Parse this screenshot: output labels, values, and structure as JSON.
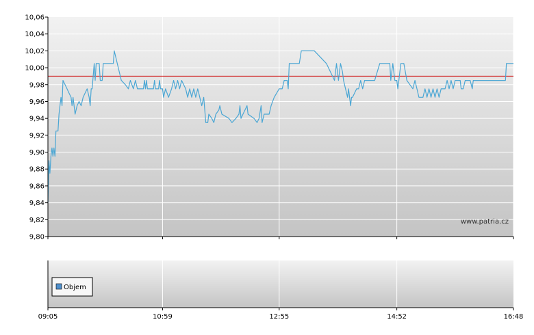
{
  "chart_data": [
    {
      "type": "line",
      "title": "",
      "xlabel": "",
      "ylabel": "",
      "ylim": [
        9.8,
        10.06
      ],
      "y_ticks": [
        "10,06",
        "10,04",
        "10,02",
        "10,00",
        "9,98",
        "9,96",
        "9,94",
        "9,92",
        "9,90",
        "9,88",
        "9,86",
        "9,84",
        "9,82",
        "9,80"
      ],
      "x_ticks": [
        "09:05",
        "10:59",
        "12:55",
        "14:52",
        "16:48"
      ],
      "xlim": [
        "09:05",
        "16:48"
      ],
      "reference_line": {
        "value": 9.99,
        "color": "#cc0000"
      },
      "grid": true,
      "series": [
        {
          "color": "#4aa6d4",
          "points": [
            [
              "09:05",
              9.84
            ],
            [
              "09:06",
              9.89
            ],
            [
              "09:07",
              9.875
            ],
            [
              "09:08",
              9.895
            ],
            [
              "09:09",
              9.905
            ],
            [
              "09:10",
              9.895
            ],
            [
              "09:11",
              9.905
            ],
            [
              "09:12",
              9.895
            ],
            [
              "09:13",
              9.925
            ],
            [
              "09:15",
              9.925
            ],
            [
              "09:16",
              9.945
            ],
            [
              "09:17",
              9.955
            ],
            [
              "09:18",
              9.965
            ],
            [
              "09:19",
              9.955
            ],
            [
              "09:20",
              9.985
            ],
            [
              "09:22",
              9.98
            ],
            [
              "09:24",
              9.975
            ],
            [
              "09:26",
              9.97
            ],
            [
              "09:28",
              9.965
            ],
            [
              "09:29",
              9.955
            ],
            [
              "09:30",
              9.965
            ],
            [
              "09:32",
              9.945
            ],
            [
              "09:34",
              9.955
            ],
            [
              "09:36",
              9.96
            ],
            [
              "09:38",
              9.955
            ],
            [
              "09:40",
              9.965
            ],
            [
              "09:42",
              9.97
            ],
            [
              "09:44",
              9.975
            ],
            [
              "09:46",
              9.965
            ],
            [
              "09:47",
              9.955
            ],
            [
              "09:48",
              9.975
            ],
            [
              "09:49",
              9.975
            ],
            [
              "09:51",
              10.005
            ],
            [
              "09:52",
              9.985
            ],
            [
              "09:53",
              10.005
            ],
            [
              "09:56",
              10.005
            ],
            [
              "09:57",
              9.985
            ],
            [
              "09:59",
              9.985
            ],
            [
              "10:00",
              10.005
            ],
            [
              "10:10",
              10.005
            ],
            [
              "10:11",
              10.02
            ],
            [
              "10:12",
              10.015
            ],
            [
              "10:14",
              10.005
            ],
            [
              "10:18",
              9.985
            ],
            [
              "10:22",
              9.98
            ],
            [
              "10:25",
              9.975
            ],
            [
              "10:27",
              9.985
            ],
            [
              "10:30",
              9.975
            ],
            [
              "10:32",
              9.985
            ],
            [
              "10:34",
              9.975
            ],
            [
              "10:40",
              9.975
            ],
            [
              "10:41",
              9.985
            ],
            [
              "10:42",
              9.975
            ],
            [
              "10:43",
              9.985
            ],
            [
              "10:44",
              9.975
            ],
            [
              "10:50",
              9.975
            ],
            [
              "10:51",
              9.985
            ],
            [
              "10:52",
              9.975
            ],
            [
              "10:55",
              9.975
            ],
            [
              "10:56",
              9.985
            ],
            [
              "10:57",
              9.975
            ],
            [
              "10:59",
              9.975
            ],
            [
              "11:00",
              9.965
            ],
            [
              "11:02",
              9.975
            ],
            [
              "11:05",
              9.965
            ],
            [
              "11:08",
              9.975
            ],
            [
              "11:10",
              9.985
            ],
            [
              "11:12",
              9.975
            ],
            [
              "11:14",
              9.985
            ],
            [
              "11:16",
              9.975
            ],
            [
              "11:18",
              9.985
            ],
            [
              "11:22",
              9.975
            ],
            [
              "11:24",
              9.965
            ],
            [
              "11:26",
              9.975
            ],
            [
              "11:28",
              9.965
            ],
            [
              "11:30",
              9.975
            ],
            [
              "11:32",
              9.965
            ],
            [
              "11:34",
              9.975
            ],
            [
              "11:36",
              9.965
            ],
            [
              "11:38",
              9.955
            ],
            [
              "11:40",
              9.965
            ],
            [
              "11:42",
              9.935
            ],
            [
              "11:44",
              9.935
            ],
            [
              "11:45",
              9.945
            ],
            [
              "11:48",
              9.94
            ],
            [
              "11:50",
              9.935
            ],
            [
              "11:52",
              9.945
            ],
            [
              "11:55",
              9.95
            ],
            [
              "11:56",
              9.955
            ],
            [
              "11:58",
              9.945
            ],
            [
              "12:05",
              9.94
            ],
            [
              "12:08",
              9.935
            ],
            [
              "12:12",
              9.94
            ],
            [
              "12:15",
              9.945
            ],
            [
              "12:16",
              9.955
            ],
            [
              "12:17",
              9.94
            ],
            [
              "12:19",
              9.945
            ],
            [
              "12:21",
              9.95
            ],
            [
              "12:23",
              9.955
            ],
            [
              "12:24",
              9.945
            ],
            [
              "12:30",
              9.94
            ],
            [
              "12:33",
              9.935
            ],
            [
              "12:35",
              9.94
            ],
            [
              "12:37",
              9.955
            ],
            [
              "12:38",
              9.935
            ],
            [
              "12:40",
              9.945
            ],
            [
              "12:45",
              9.945
            ],
            [
              "12:47",
              9.955
            ],
            [
              "12:50",
              9.965
            ],
            [
              "12:55",
              9.975
            ],
            [
              "12:58",
              9.975
            ],
            [
              "13:00",
              9.985
            ],
            [
              "13:03",
              9.985
            ],
            [
              "13:04",
              9.975
            ],
            [
              "13:05",
              10.005
            ],
            [
              "13:15",
              10.005
            ],
            [
              "13:17",
              10.02
            ],
            [
              "13:30",
              10.02
            ],
            [
              "13:42",
              10.005
            ],
            [
              "13:50",
              9.985
            ],
            [
              "13:52",
              10.005
            ],
            [
              "13:54",
              9.985
            ],
            [
              "13:56",
              10.005
            ],
            [
              "13:58",
              9.995
            ],
            [
              "13:59",
              9.985
            ],
            [
              "14:01",
              9.975
            ],
            [
              "14:03",
              9.965
            ],
            [
              "14:04",
              9.975
            ],
            [
              "14:06",
              9.955
            ],
            [
              "14:07",
              9.965
            ],
            [
              "14:08",
              9.965
            ],
            [
              "14:12",
              9.975
            ],
            [
              "14:14",
              9.975
            ],
            [
              "14:16",
              9.985
            ],
            [
              "14:18",
              9.975
            ],
            [
              "14:20",
              9.985
            ],
            [
              "14:30",
              9.985
            ],
            [
              "14:35",
              10.005
            ],
            [
              "14:45",
              10.005
            ],
            [
              "14:46",
              9.985
            ],
            [
              "14:48",
              10.005
            ],
            [
              "14:50",
              9.985
            ],
            [
              "14:52",
              9.985
            ],
            [
              "14:53",
              9.975
            ],
            [
              "14:54",
              9.985
            ],
            [
              "14:56",
              10.005
            ],
            [
              "14:59",
              10.005
            ],
            [
              "15:02",
              9.985
            ],
            [
              "15:05",
              9.98
            ],
            [
              "15:08",
              9.975
            ],
            [
              "15:10",
              9.985
            ],
            [
              "15:12",
              9.975
            ],
            [
              "15:14",
              9.965
            ],
            [
              "15:18",
              9.965
            ],
            [
              "15:20",
              9.975
            ],
            [
              "15:22",
              9.965
            ],
            [
              "15:24",
              9.975
            ],
            [
              "15:26",
              9.965
            ],
            [
              "15:28",
              9.975
            ],
            [
              "15:30",
              9.965
            ],
            [
              "15:32",
              9.975
            ],
            [
              "15:34",
              9.965
            ],
            [
              "15:36",
              9.975
            ],
            [
              "15:40",
              9.975
            ],
            [
              "15:42",
              9.985
            ],
            [
              "15:44",
              9.975
            ],
            [
              "15:46",
              9.985
            ],
            [
              "15:48",
              9.975
            ],
            [
              "15:50",
              9.985
            ],
            [
              "15:55",
              9.985
            ],
            [
              "15:56",
              9.975
            ],
            [
              "15:58",
              9.975
            ],
            [
              "16:00",
              9.985
            ],
            [
              "16:05",
              9.985
            ],
            [
              "16:07",
              9.975
            ],
            [
              "16:08",
              9.985
            ],
            [
              "16:40",
              9.985
            ],
            [
              "16:41",
              10.005
            ],
            [
              "16:48",
              10.005
            ]
          ]
        }
      ],
      "watermark": "www.patria.cz"
    },
    {
      "type": "bar",
      "title": "",
      "legend": [
        {
          "label": "Objem",
          "color": "#4f8fcc"
        }
      ],
      "series": []
    }
  ]
}
